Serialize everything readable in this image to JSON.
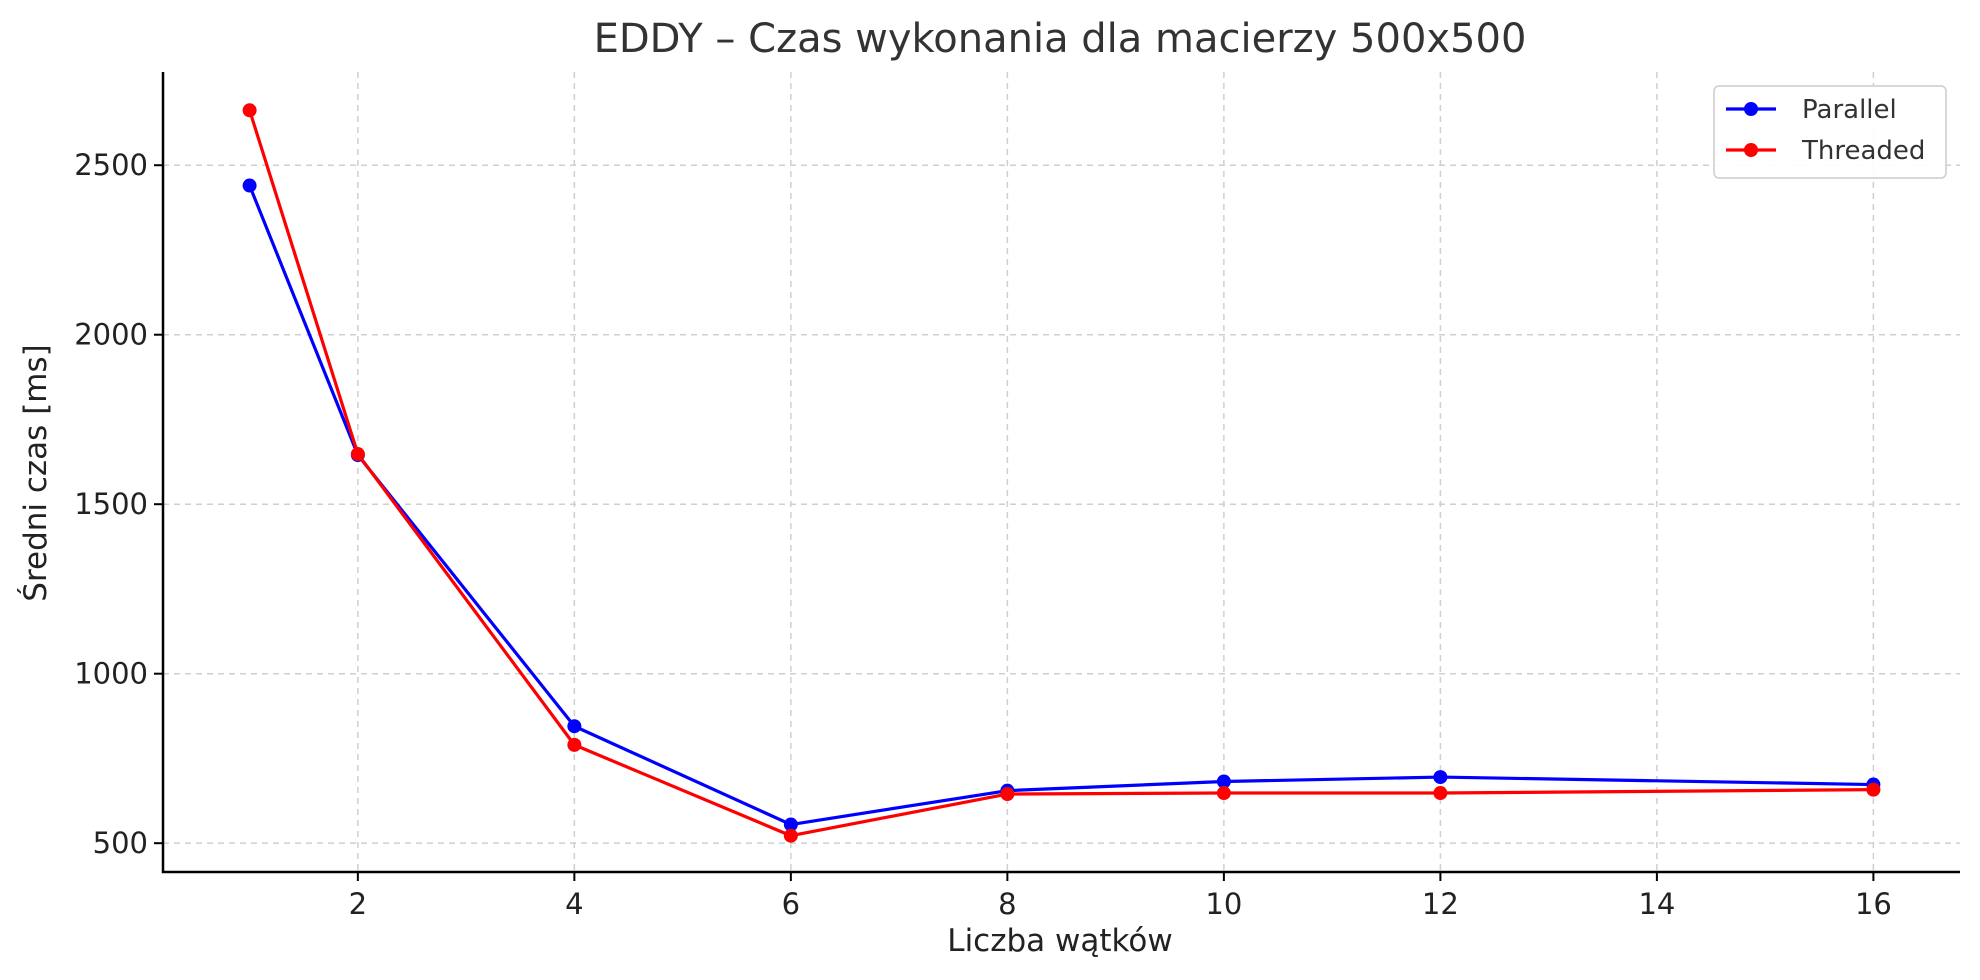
{
  "chart_data": {
    "type": "line",
    "title": "EDDY – Czas wykonania dla macierzy 500x500",
    "xlabel": "Liczba wątków",
    "ylabel": "Średni czas [ms]",
    "x": [
      1,
      2,
      4,
      6,
      8,
      10,
      12,
      16
    ],
    "xlim": [
      0.2,
      16.8
    ],
    "ylim": [
      415,
      2775
    ],
    "xticks": [
      2,
      4,
      6,
      8,
      10,
      12,
      14,
      16
    ],
    "yticks": [
      500,
      1000,
      1500,
      2000,
      2500
    ],
    "grid": true,
    "legend_position": "top-right",
    "series": [
      {
        "name": "Parallel",
        "color": "#0000ff",
        "values": [
          2440,
          1645,
          845,
          555,
          655,
          682,
          695,
          673
        ]
      },
      {
        "name": "Threaded",
        "color": "#ff0000",
        "values": [
          2662,
          1648,
          790,
          522,
          645,
          648,
          648,
          658
        ]
      }
    ]
  }
}
